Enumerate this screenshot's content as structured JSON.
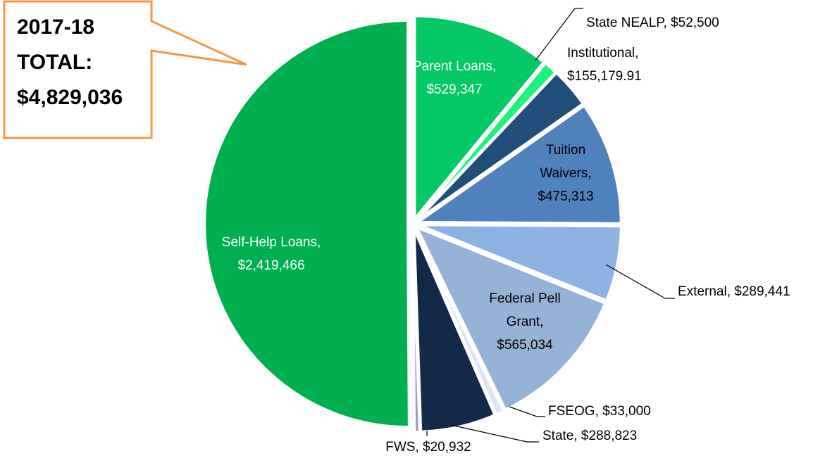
{
  "chart_data": {
    "type": "pie",
    "title": "2017-18 TOTAL: $4,829,036",
    "labels": [
      "Parent Loans, $529,347",
      "State NEALP, $52,500",
      "Institutional, $155,179.91",
      "Tuition Waivers, $475,313",
      "External, $289,441",
      "Federal Pell Grant, $565,034",
      "FSEOG, $33,000",
      "State, $288,823",
      "FWS, $20,932",
      "Self-Help Loans, $2,419,466"
    ],
    "values": [
      529347,
      52500,
      155179.91,
      475313,
      289441,
      565034,
      33000,
      288823,
      20932,
      2419466
    ],
    "colors": [
      "#05c965",
      "#1df27d",
      "#1f4e79",
      "#4f81bd",
      "#8db3e2",
      "#95b3d7",
      "#dce6f2",
      "#13294a",
      "#a59bc4",
      "#00b04f"
    ]
  }
}
